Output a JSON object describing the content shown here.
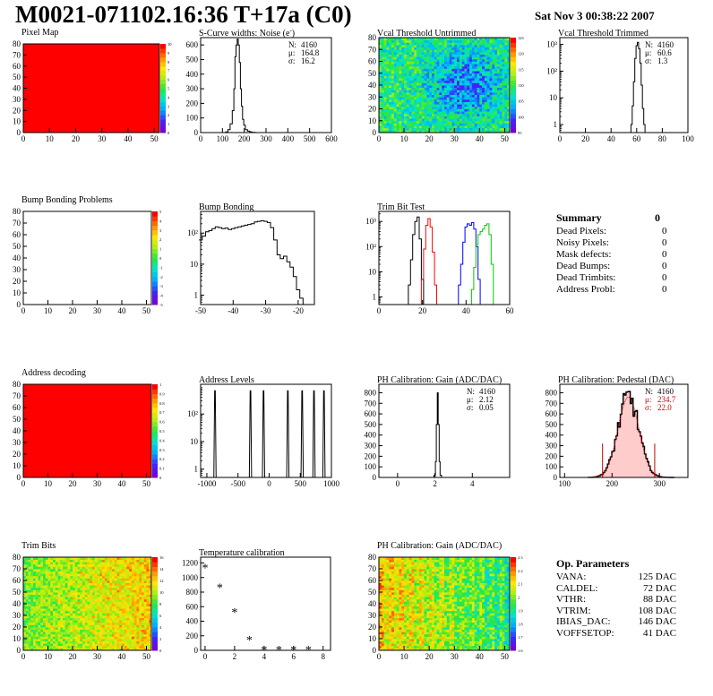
{
  "header": {
    "title": "M0021-071102.16:36 T+17a (C0)",
    "date": "Sat Nov  3 00:38:22 2007"
  },
  "chart_data": [
    {
      "id": "pixel_map",
      "type": "heatmap",
      "title": "Pixel Map",
      "fill": "uniform",
      "uniform_color": "#ff0000",
      "xlim": [
        0,
        52
      ],
      "ylim": [
        0,
        80
      ],
      "xticks": [
        "0",
        "10",
        "20",
        "30",
        "40",
        "50"
      ],
      "yticks": [
        "0",
        "10",
        "20",
        "30",
        "40",
        "50",
        "60",
        "70",
        "80"
      ],
      "zticks": [
        "0",
        "1",
        "2",
        "3",
        "4",
        "5",
        "6",
        "7",
        "8",
        "9",
        "10"
      ]
    },
    {
      "id": "scurve_noise",
      "type": "line",
      "title": "S-Curve widths: Noise (e",
      "title_sup": "-",
      "title_end": ")",
      "xlim": [
        0,
        600
      ],
      "ylim": [
        0,
        650
      ],
      "xticks": [
        "0",
        "100",
        "200",
        "300",
        "400",
        "500",
        "600"
      ],
      "yticks": [
        "0",
        "100",
        "200",
        "300",
        "400",
        "500",
        "600"
      ],
      "x": [
        110,
        120,
        130,
        140,
        150,
        155,
        160,
        165,
        170,
        175,
        180,
        185,
        190,
        195,
        200,
        210,
        220,
        230,
        240,
        260
      ],
      "y": [
        0,
        5,
        20,
        60,
        150,
        300,
        520,
        600,
        640,
        600,
        480,
        300,
        180,
        90,
        50,
        20,
        10,
        5,
        2,
        0
      ],
      "stats": [
        [
          "N:",
          "4160"
        ],
        [
          "μ:",
          "164.8"
        ],
        [
          "σ:",
          "16.2"
        ]
      ]
    },
    {
      "id": "vcal_untrimmed",
      "type": "heatmap",
      "title": "Vcal Threshold Untrimmed",
      "fill": "noise",
      "noise_kind": "untrimmed",
      "xlim": [
        0,
        52
      ],
      "ylim": [
        0,
        80
      ],
      "xticks": [
        "0",
        "10",
        "20",
        "30",
        "40",
        "50"
      ],
      "yticks": [
        "0",
        "10",
        "20",
        "30",
        "40",
        "50",
        "60",
        "70",
        "80"
      ],
      "zticks": [
        "95",
        "100",
        "105",
        "110",
        "115",
        "120",
        "125"
      ]
    },
    {
      "id": "vcal_trimmed",
      "type": "line",
      "title": "Vcal Threshold Trimmed",
      "log_y": true,
      "xlim": [
        0,
        100
      ],
      "ylim": [
        0.5,
        1800
      ],
      "xticks": [
        "0",
        "20",
        "40",
        "60",
        "80",
        "100"
      ],
      "yticks": [
        {
          "v": 1,
          "label": "1"
        },
        {
          "v": 10,
          "label": "10"
        },
        {
          "v": 100,
          "label": "10²"
        },
        {
          "v": 1000,
          "label": "10³"
        }
      ],
      "x": [
        55,
        56,
        57,
        58,
        59,
        60,
        61,
        62,
        63,
        64,
        65,
        66,
        67
      ],
      "y": [
        0.5,
        1,
        5,
        40,
        300,
        900,
        1200,
        700,
        200,
        30,
        4,
        1,
        0.5
      ],
      "stats": [
        [
          "N:",
          "4160"
        ],
        [
          "μ:",
          "60.6"
        ],
        [
          "σ:",
          "1.3"
        ]
      ]
    },
    {
      "id": "bump_bonding_problems",
      "type": "heatmap",
      "title": "Bump Bonding Problems",
      "fill": "empty",
      "xlim": [
        0,
        52
      ],
      "ylim": [
        0,
        80
      ],
      "xticks": [
        "0",
        "10",
        "20",
        "30",
        "40",
        "50"
      ],
      "yticks": [
        "0",
        "10",
        "20",
        "30",
        "40",
        "50",
        "60",
        "70",
        "80"
      ],
      "zticks": [
        "-5",
        "-4",
        "-3",
        "-2",
        "-1",
        "0",
        "1",
        "2",
        "3",
        "4",
        "5"
      ]
    },
    {
      "id": "bump_bonding",
      "type": "line",
      "title": "Bump Bonding",
      "log_y": true,
      "xlim": [
        -50,
        -15
      ],
      "ylim": [
        0.5,
        500
      ],
      "xticks": [
        "-50",
        "-40",
        "-30",
        "-20"
      ],
      "yticks": [
        {
          "v": 1,
          "label": "1"
        },
        {
          "v": 10,
          "label": "10"
        },
        {
          "v": 100,
          "label": "10²"
        }
      ],
      "x": [
        -50,
        -49,
        -48,
        -47,
        -46,
        -45,
        -44,
        -43,
        -42,
        -41,
        -40,
        -39,
        -38,
        -37,
        -36,
        -35,
        -34,
        -33,
        -32,
        -31,
        -30,
        -29,
        -28,
        -27,
        -26,
        -25,
        -24,
        -23,
        -22,
        -21,
        -20,
        -19,
        -18
      ],
      "y": [
        60,
        80,
        110,
        120,
        140,
        160,
        150,
        140,
        145,
        130,
        140,
        150,
        160,
        170,
        180,
        190,
        200,
        230,
        240,
        250,
        240,
        220,
        150,
        60,
        20,
        15,
        18,
        12,
        8,
        4,
        1.5,
        0.8,
        0.5
      ],
      "stats": []
    },
    {
      "id": "trim_bit_test",
      "type": "line",
      "title": "Trim Bit Test",
      "log_y": true,
      "xlim": [
        0,
        60
      ],
      "ylim": [
        0.5,
        2500
      ],
      "xticks": [
        "0",
        "20",
        "40",
        "60"
      ],
      "yticks": [
        {
          "v": 1,
          "label": "1"
        },
        {
          "v": 10,
          "label": "10"
        },
        {
          "v": 100,
          "label": "10²"
        },
        {
          "v": 1000,
          "label": "10³"
        }
      ],
      "series": [
        {
          "color": "#000000",
          "x": [
            13,
            14,
            15,
            16,
            17,
            18,
            19,
            20,
            21
          ],
          "y": [
            0.5,
            3,
            30,
            300,
            1000,
            1500,
            200,
            5,
            0.5
          ]
        },
        {
          "color": "#ff0000",
          "x": [
            19,
            20,
            21,
            22,
            23,
            24,
            25,
            26,
            27
          ],
          "y": [
            0.5,
            5,
            80,
            700,
            1300,
            600,
            60,
            3,
            0.5
          ]
        },
        {
          "color": "#0000ff",
          "x": [
            36,
            37,
            38,
            39,
            40,
            41,
            42,
            43,
            44,
            45,
            46,
            47
          ],
          "y": [
            0.5,
            3,
            20,
            150,
            600,
            800,
            700,
            900,
            500,
            100,
            5,
            0.5
          ]
        },
        {
          "color": "#00cc00",
          "x": [
            42,
            43,
            44,
            45,
            46,
            47,
            48,
            49,
            50,
            51,
            52,
            53
          ],
          "y": [
            0.5,
            2,
            15,
            120,
            300,
            400,
            500,
            700,
            800,
            300,
            20,
            0.5
          ]
        }
      ],
      "stats": []
    },
    {
      "id": "address_decoding",
      "type": "heatmap",
      "title": "Address decoding",
      "fill": "uniform",
      "uniform_color": "#ff0000",
      "xlim": [
        0,
        52
      ],
      "ylim": [
        0,
        80
      ],
      "xticks": [
        "0",
        "10",
        "20",
        "30",
        "40",
        "50"
      ],
      "yticks": [
        "0",
        "10",
        "20",
        "30",
        "40",
        "50",
        "60",
        "70",
        "80"
      ],
      "zticks": [
        "0",
        "0.1",
        "0.2",
        "0.3",
        "0.4",
        "0.5",
        "0.6",
        "0.7",
        "0.8",
        "0.9",
        "1"
      ]
    },
    {
      "id": "address_levels",
      "type": "line",
      "title": "Address Levels",
      "log_y": true,
      "xlim": [
        -1100,
        1000
      ],
      "ylim": [
        0.5,
        1200
      ],
      "xticks": [
        "-1000",
        "-500",
        "0",
        "500",
        "1000"
      ],
      "yticks": [
        {
          "v": 1,
          "label": "1"
        },
        {
          "v": 10,
          "label": "10"
        },
        {
          "v": 100,
          "label": "10²"
        }
      ],
      "peaks": [
        -870,
        -300,
        -90,
        300,
        530,
        720,
        880
      ],
      "peak_height": 700,
      "peak_halfwidth": 18,
      "stats": []
    },
    {
      "id": "ph_gain",
      "type": "line",
      "title": "PH Calibration: Gain (ADC/DAC)",
      "xlim": [
        -1,
        6
      ],
      "ylim": [
        0,
        880
      ],
      "xticks": [
        "0",
        "2",
        "4"
      ],
      "yticks": [
        "0",
        "100",
        "200",
        "300",
        "400",
        "500",
        "600",
        "700",
        "800"
      ],
      "x": [
        1.9,
        2.0,
        2.05,
        2.1,
        2.15,
        2.2,
        2.25,
        2.3,
        2.4
      ],
      "y": [
        0,
        20,
        150,
        500,
        800,
        500,
        150,
        20,
        0
      ],
      "stats": [
        [
          "N:",
          "4160"
        ],
        [
          "μ:",
          "2.12"
        ],
        [
          "σ:",
          "0.05"
        ]
      ]
    },
    {
      "id": "ph_pedestal",
      "type": "line",
      "title": "PH Calibration: Pedestal (DAC)",
      "xlim": [
        90,
        360
      ],
      "ylim": [
        0,
        880
      ],
      "xticks": [
        "100",
        "200",
        "300"
      ],
      "yticks": [
        "0",
        "100",
        "200",
        "300",
        "400",
        "500",
        "600",
        "700",
        "800"
      ],
      "mu": 234.7,
      "sigma": 22.0,
      "peak": 760,
      "fit_lines": [
        180,
        290
      ],
      "stats": [
        [
          "N:",
          "4160"
        ],
        [
          "μ:",
          "234.7"
        ],
        [
          "σ:",
          "22.0"
        ]
      ],
      "stats_colors": [
        "#000000",
        "#cc0000",
        "#cc0000"
      ]
    },
    {
      "id": "trim_bits",
      "type": "heatmap",
      "title": "Trim Bits",
      "fill": "noise",
      "noise_kind": "trimbits",
      "xlim": [
        0,
        52
      ],
      "ylim": [
        0,
        80
      ],
      "xticks": [
        "0",
        "10",
        "20",
        "30",
        "40",
        "50"
      ],
      "yticks": [
        "0",
        "10",
        "20",
        "30",
        "40",
        "50",
        "60",
        "70",
        "80"
      ],
      "zticks": [
        "0",
        "2",
        "4",
        "6",
        "8",
        "10",
        "12",
        "14",
        "16"
      ]
    },
    {
      "id": "temperature_calibration",
      "type": "scatter",
      "title": "Temperature calibration",
      "xlim": [
        -0.3,
        8.5
      ],
      "ylim": [
        0,
        1280
      ],
      "xticks": [
        "0",
        "2",
        "4",
        "6",
        "8"
      ],
      "yticks": [
        "0",
        "200",
        "400",
        "600",
        "800",
        "1000",
        "1200"
      ],
      "x": [
        0,
        1,
        2,
        3,
        4,
        5,
        6,
        7
      ],
      "y": [
        1140,
        870,
        530,
        150,
        10,
        10,
        10,
        10
      ]
    },
    {
      "id": "ph_gain_map",
      "type": "heatmap",
      "title": "PH Calibration: Gain (ADC/DAC)",
      "fill": "noise",
      "noise_kind": "gainmap",
      "xlim": [
        0,
        52
      ],
      "ylim": [
        0,
        80
      ],
      "xticks": [
        "0",
        "10",
        "20",
        "30",
        "40",
        "50"
      ],
      "yticks": [
        "0",
        "10",
        "20",
        "30",
        "40",
        "50",
        "60",
        "70",
        "80"
      ],
      "zticks": [
        "1.6",
        "1.7",
        "1.8",
        "1.9",
        "2",
        "2.1",
        "2.2",
        "2.3"
      ]
    }
  ],
  "summary": {
    "title": "Summary",
    "total": "0",
    "rows": [
      {
        "label": "Dead Pixels:",
        "value": "0"
      },
      {
        "label": "Noisy Pixels:",
        "value": "0"
      },
      {
        "label": "Mask defects:",
        "value": "0"
      },
      {
        "label": "Dead Bumps:",
        "value": "0"
      },
      {
        "label": "Dead Trimbits:",
        "value": "0"
      },
      {
        "label": "Address Probl:",
        "value": "0"
      }
    ]
  },
  "op_params": {
    "title": "Op. Parameters",
    "rows": [
      {
        "label": "VANA:",
        "value": "125 DAC"
      },
      {
        "label": "CALDEL:",
        "value": "72 DAC"
      },
      {
        "label": "VTHR:",
        "value": "88 DAC"
      },
      {
        "label": "VTRIM:",
        "value": "108 DAC"
      },
      {
        "label": "IBIAS_DAC:",
        "value": "146 DAC"
      },
      {
        "label": "VOFFSETOP:",
        "value": "41 DAC"
      }
    ]
  }
}
